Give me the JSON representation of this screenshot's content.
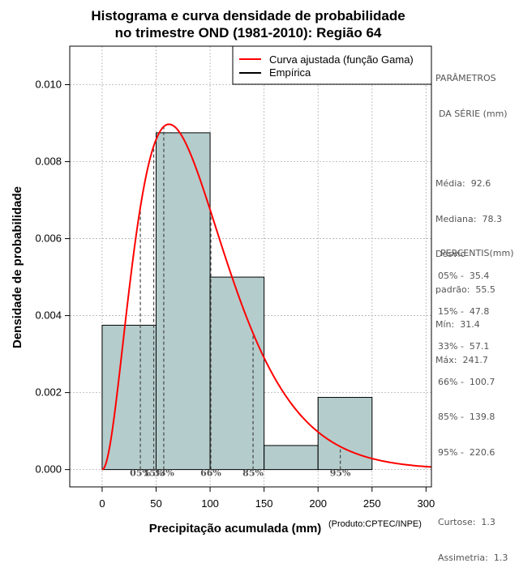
{
  "chart_data": {
    "type": "bar",
    "title": [
      "Histograma e curva densidade de probabilidade",
      "no trimestre OND (1981-2010): Região 64"
    ],
    "xlabel": "Precipitação acumulada (mm)",
    "ylabel": "Densidade de probabilidade",
    "credit": "(Produto:CPTEC/INPE)",
    "xlim": [
      -30,
      305
    ],
    "ylim": [
      -0.00045,
      0.011
    ],
    "x_ticks": [
      0,
      50,
      100,
      150,
      200,
      250,
      300
    ],
    "y_ticks": [
      0.0,
      0.002,
      0.004,
      0.006,
      0.008,
      0.01
    ],
    "x_tick_labels": [
      "0",
      "50",
      "100",
      "150",
      "200",
      "250",
      "300"
    ],
    "y_tick_labels": [
      "0.000",
      "0.002",
      "0.004",
      "0.006",
      "0.008",
      "0.010"
    ],
    "grid": true,
    "bins": [
      {
        "from": 0,
        "to": 50,
        "density": 0.00375
      },
      {
        "from": 50,
        "to": 100,
        "density": 0.00875
      },
      {
        "from": 100,
        "to": 150,
        "density": 0.005
      },
      {
        "from": 150,
        "to": 200,
        "density": 0.000625
      },
      {
        "from": 200,
        "to": 250,
        "density": 0.001875
      }
    ],
    "gamma_fit": {
      "shape": 3.1,
      "scale": 29.5
    },
    "percentiles": [
      {
        "label": "05%",
        "x": 35.4
      },
      {
        "label": "15%",
        "x": 47.8
      },
      {
        "label": "33%",
        "x": 57.1
      },
      {
        "label": "66%",
        "x": 100.7
      },
      {
        "label": "85%",
        "x": 139.8
      },
      {
        "label": "95%",
        "x": 220.6
      }
    ],
    "percentile_annotations": [
      {
        "text": "05%",
        "x": 35.4
      },
      {
        "text": "15%",
        "x": 47.8
      },
      {
        "text": "33%",
        "x": 57.1
      },
      {
        "text": "66%",
        "x": 100.7
      },
      {
        "text": "85%",
        "x": 139.8
      },
      {
        "text": "95%",
        "x": 220.6
      }
    ],
    "legend": [
      {
        "label": "Curva ajustada (função Gama)",
        "color": "#ff0000"
      },
      {
        "label": "Empírica",
        "color": "#000000"
      }
    ],
    "legend_position": "top-right",
    "colors": {
      "bar_fill": "#b4cccc",
      "bar_stroke": "#000000",
      "curve": "#ff0000",
      "grid": "#b0b0b0"
    }
  },
  "params_panel": {
    "heading_1": "PARÂMETROS",
    "heading_2": "DA SÉRIE (mm)",
    "media": "Média:  92.6",
    "mediana": "Mediana:  78.3",
    "desvio_1": "Desvio",
    "desvio_2": "padrão:  55.5",
    "min": "Mín:  31.4",
    "max": "Máx:  241.7"
  },
  "percentis_panel": {
    "heading": "PERCENTIS(mm)",
    "p05": "05% -  35.4",
    "p15": "15% -  47.8",
    "p33": "33% -  57.1",
    "p66": "66% -  100.7",
    "p85": "85% -  139.8",
    "p95": "95% -  220.6",
    "curtose": "Curtose:  1.3",
    "assimetria": "Assimetria:  1.3"
  }
}
